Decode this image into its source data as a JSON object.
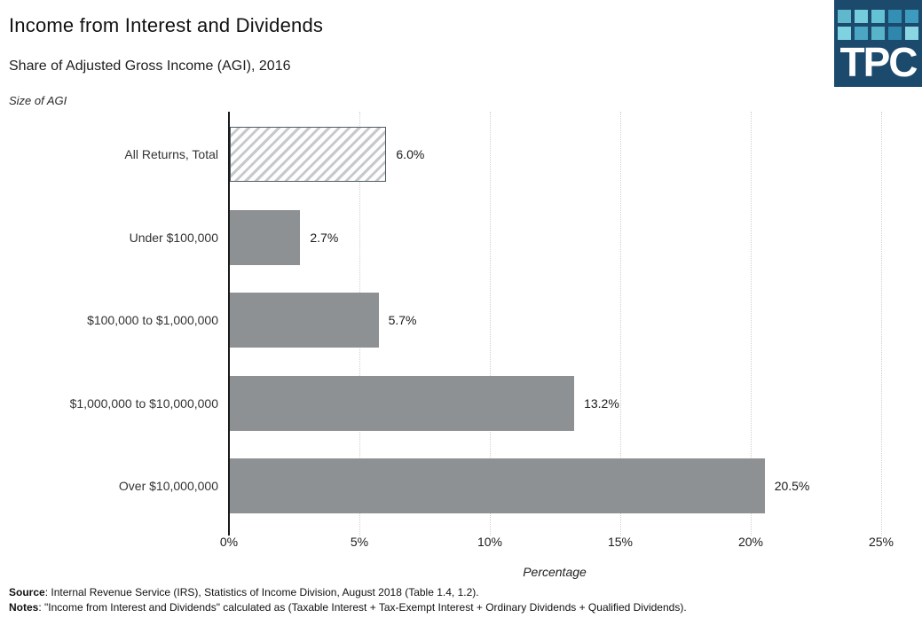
{
  "header": {
    "title": "Income from Interest and Dividends",
    "subtitle": "Share of Adjusted Gross Income (AGI), 2016",
    "axis_note": "Size of AGI",
    "logo": {
      "text": "TPC",
      "bg": "#1b4a6d",
      "squares": [
        "#5fb8cc",
        "#74ccdc",
        "#63c2d4",
        "#3390b4",
        "#3d9cbd",
        "#7fd2e0",
        "#4aa6c2",
        "#58b4c9",
        "#2f87ae",
        "#8ad6e2"
      ]
    }
  },
  "chart_data": {
    "type": "bar",
    "orientation": "horizontal",
    "title": "Income from Interest and Dividends",
    "subtitle": "Share of Adjusted Gross Income (AGI), 2016",
    "categories": [
      "All Returns, Total",
      "Under $100,000",
      "$100,000 to $1,000,000",
      "$1,000,000 to $10,000,000",
      "Over $10,000,000"
    ],
    "values": [
      6.0,
      2.7,
      5.7,
      13.2,
      20.5
    ],
    "value_labels": [
      "6.0%",
      "2.7%",
      "5.7%",
      "13.2%",
      "20.5%"
    ],
    "xlabel": "Percentage",
    "ylabel": "Size of AGI",
    "xlim": [
      0,
      25
    ],
    "x_ticks": [
      "0%",
      "5%",
      "10%",
      "15%",
      "20%",
      "25%"
    ],
    "grid": "vertical-dotted",
    "legend": "none",
    "bar_color": "#8e9193",
    "first_bar_style": "hatched-outline"
  },
  "footer": {
    "source_label": "Source",
    "source_text": ": Internal Revenue Service (IRS), Statistics of Income Division, August 2018 (Table 1.4, 1.2).",
    "notes_label": "Notes",
    "notes_text": ": \"Income from Interest and Dividends\" calculated as (Taxable Interest + Tax-Exempt Interest + Ordinary Dividends + Qualified Dividends)."
  }
}
